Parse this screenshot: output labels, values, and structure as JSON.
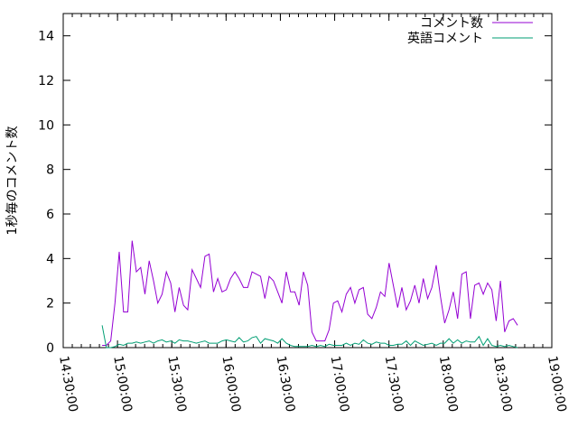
{
  "chart_data": {
    "type": "line",
    "title": "",
    "xlabel": "",
    "ylabel": "1秒毎のコメント数",
    "ylim": [
      0,
      15
    ],
    "yticks": [
      "0",
      "2",
      "4",
      "6",
      "8",
      "10",
      "12",
      "14"
    ],
    "xlim": [
      "14:30:00",
      "19:00:00"
    ],
    "xticks": [
      "14:30:00",
      "15:00:00",
      "15:30:00",
      "16:00:00",
      "16:30:00",
      "17:00:00",
      "17:30:00",
      "18:00:00",
      "18:30:00",
      "19:00:00"
    ],
    "grid": false,
    "legend_position": "top-right",
    "x": [
      "14:51:30",
      "14:53:52",
      "14:56:14",
      "14:58:36",
      "15:00:58",
      "15:03:20",
      "15:05:42",
      "15:08:04",
      "15:10:26",
      "15:12:48",
      "15:15:10",
      "15:17:32",
      "15:19:54",
      "15:22:16",
      "15:24:38",
      "15:27:00",
      "15:29:22",
      "15:31:44",
      "15:34:06",
      "15:36:28",
      "15:38:50",
      "15:41:12",
      "15:43:34",
      "15:45:56",
      "15:48:18",
      "15:50:40",
      "15:53:02",
      "15:55:24",
      "15:57:46",
      "16:00:08",
      "16:02:30",
      "16:04:52",
      "16:07:14",
      "16:09:36",
      "16:11:58",
      "16:14:20",
      "16:16:42",
      "16:19:04",
      "16:21:26",
      "16:23:48",
      "16:26:10",
      "16:28:32",
      "16:30:54",
      "16:33:16",
      "16:35:38",
      "16:38:00",
      "16:40:22",
      "16:42:44",
      "16:45:06",
      "16:47:28",
      "16:49:50",
      "16:52:12",
      "16:54:34",
      "16:56:56",
      "16:59:18",
      "17:01:40",
      "17:04:02",
      "17:06:24",
      "17:08:46",
      "17:11:08",
      "17:13:30",
      "17:15:52",
      "17:18:14",
      "17:20:36",
      "17:22:58",
      "17:25:20",
      "17:27:42",
      "17:30:04",
      "17:32:26",
      "17:34:48",
      "17:37:10",
      "17:39:32",
      "17:41:54",
      "17:44:16",
      "17:46:38",
      "17:49:00",
      "17:51:22",
      "17:53:44",
      "17:56:06",
      "17:58:28",
      "18:00:50",
      "18:03:12",
      "18:05:34",
      "18:07:56",
      "18:10:18",
      "18:12:40",
      "18:15:02",
      "18:17:24",
      "18:19:46",
      "18:22:08",
      "18:24:30",
      "18:26:52",
      "18:29:14",
      "18:31:36",
      "18:33:58",
      "18:36:20",
      "18:38:42",
      "18:41:04"
    ],
    "series": [
      {
        "name": "コメント数",
        "color": "#9400d3",
        "values": [
          0.1,
          0.1,
          0.3,
          2.0,
          4.3,
          1.6,
          1.6,
          4.8,
          3.4,
          3.6,
          2.4,
          3.9,
          3.0,
          2.0,
          2.4,
          3.4,
          2.9,
          1.6,
          2.7,
          1.9,
          1.7,
          3.5,
          3.1,
          2.7,
          4.1,
          4.2,
          2.5,
          3.1,
          2.5,
          2.6,
          3.1,
          3.4,
          3.1,
          2.7,
          2.7,
          3.4,
          3.3,
          3.2,
          2.2,
          3.2,
          3.0,
          2.5,
          2.0,
          3.4,
          2.5,
          2.5,
          1.9,
          3.4,
          2.8,
          0.7,
          0.3,
          0.3,
          0.3,
          0.8,
          2.0,
          2.1,
          1.6,
          2.4,
          2.7,
          2.0,
          2.6,
          2.7,
          1.5,
          1.3,
          1.8,
          2.5,
          2.3,
          3.8,
          2.8,
          1.8,
          2.7,
          1.7,
          2.1,
          2.8,
          2.0,
          3.1,
          2.2,
          2.7,
          3.7,
          2.3,
          1.1,
          1.7,
          2.5,
          1.3,
          3.3,
          3.4,
          1.3,
          2.8,
          2.9,
          2.4,
          2.9,
          2.6,
          1.2,
          3.0,
          0.7,
          1.2,
          1.3,
          1.0
        ]
      },
      {
        "name": "英語コメント",
        "color": "#009e73",
        "values": [
          1.0,
          0.0,
          0.0,
          0.05,
          0.15,
          0.1,
          0.2,
          0.2,
          0.25,
          0.2,
          0.25,
          0.3,
          0.2,
          0.3,
          0.35,
          0.25,
          0.3,
          0.2,
          0.35,
          0.3,
          0.3,
          0.25,
          0.2,
          0.25,
          0.3,
          0.2,
          0.2,
          0.2,
          0.3,
          0.35,
          0.3,
          0.25,
          0.45,
          0.25,
          0.3,
          0.45,
          0.5,
          0.2,
          0.4,
          0.35,
          0.3,
          0.2,
          0.4,
          0.2,
          0.1,
          0.05,
          0.05,
          0.05,
          0.05,
          0.1,
          0.05,
          0.1,
          0.05,
          0.15,
          0.1,
          0.1,
          0.1,
          0.2,
          0.1,
          0.2,
          0.15,
          0.35,
          0.2,
          0.15,
          0.25,
          0.2,
          0.2,
          0.1,
          0.1,
          0.15,
          0.15,
          0.3,
          0.1,
          0.3,
          0.2,
          0.1,
          0.15,
          0.2,
          0.1,
          0.2,
          0.2,
          0.4,
          0.2,
          0.35,
          0.2,
          0.3,
          0.25,
          0.25,
          0.5,
          0.1,
          0.4,
          0.1,
          0.05,
          0.1,
          0.05,
          0.1,
          0.05,
          0.0
        ]
      }
    ]
  }
}
